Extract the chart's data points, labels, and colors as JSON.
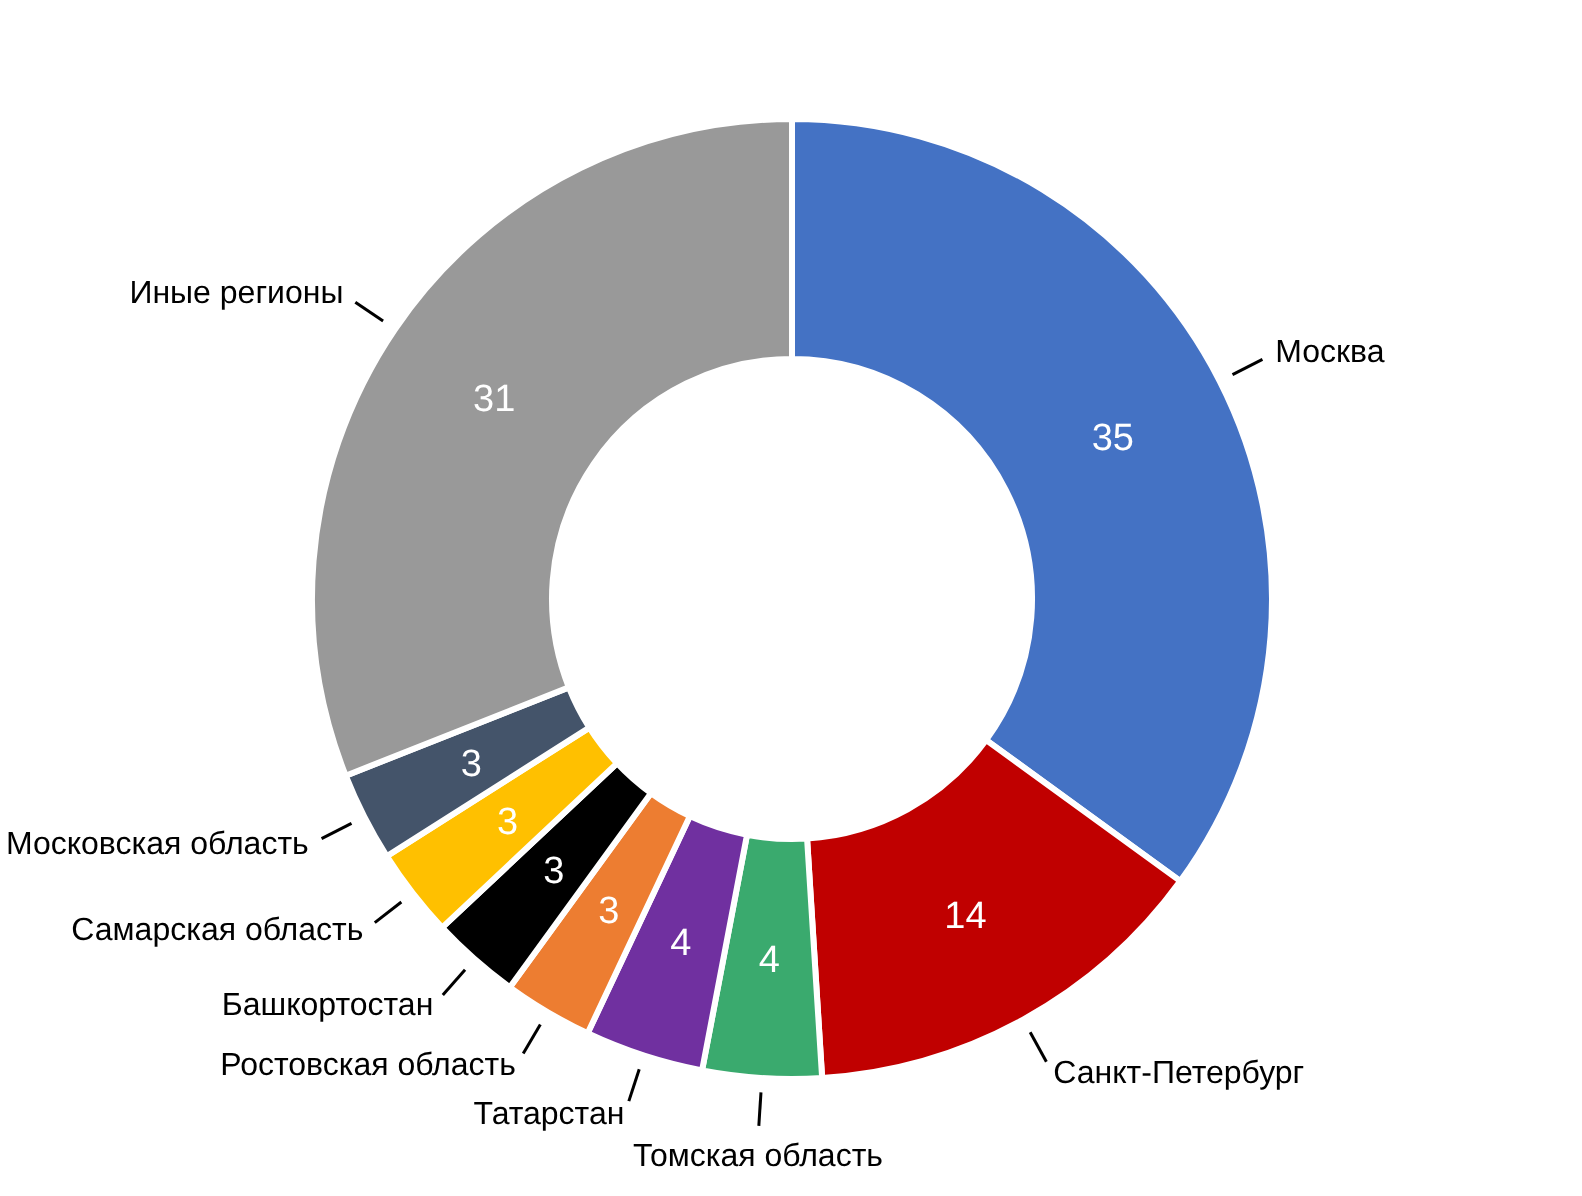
{
  "chart_data": {
    "type": "donut",
    "categories": [
      "Москва",
      "Санкт-Петербург",
      "Томская область",
      "Татарстан",
      "Ростовская область",
      "Башкортостан",
      "Самарская область",
      "Московская область",
      "Иные регионы"
    ],
    "values": [
      35,
      14,
      4,
      4,
      3,
      3,
      3,
      3,
      31
    ],
    "colors": [
      "#4472c4",
      "#c00000",
      "#3aaa6e",
      "#7030a0",
      "#ed7d31",
      "#000000",
      "#ffc000",
      "#44546a",
      "#999999"
    ],
    "data_labels": true
  }
}
